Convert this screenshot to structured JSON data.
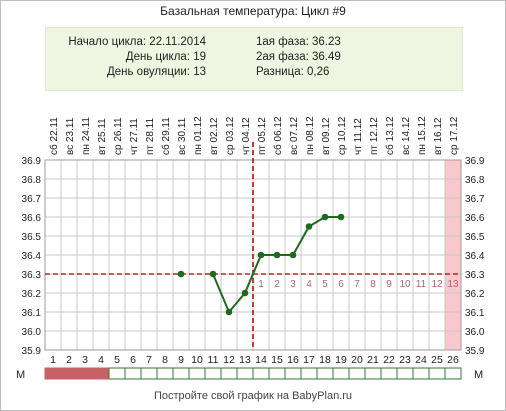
{
  "header": {
    "title": "Базальная температура: Цикл #9"
  },
  "info": {
    "cycle_start_label": "Начало цикла:",
    "cycle_start_value": "22.11.2014",
    "cycle_day_label": "День цикла:",
    "cycle_day_value": "19",
    "ovulation_day_label": "День овуляции:",
    "ovulation_day_value": "13",
    "phase1_label": "1ая фаза:",
    "phase1_value": "36.23",
    "phase2_label": "2ая фаза:",
    "phase2_value": "36.49",
    "difference_label": "Разница:",
    "difference_value": "0,26"
  },
  "footer": {
    "text": "Постройте свой график на BabyPlan.ru"
  },
  "colors": {
    "line": "#1e6b1e",
    "point": "#1e6b1e",
    "grid": "#c8c8c8",
    "coverline": "#a00000",
    "ovulation_marker": "#cc0000",
    "luteal_numbers": "#c06070",
    "highlight_column": "#f8c8cc",
    "menstruation": "#c86068",
    "strip_border": "#2e7d32"
  },
  "chart_data": {
    "type": "line",
    "title": "Базальная температура: Цикл #9",
    "days": [
      1,
      2,
      3,
      4,
      5,
      6,
      7,
      8,
      9,
      10,
      11,
      12,
      13,
      14,
      15,
      16,
      17,
      18,
      19,
      20,
      21,
      22,
      23,
      24,
      25,
      26
    ],
    "dates": [
      "22.11",
      "23.11",
      "24.11",
      "25.11",
      "26.11",
      "27.11",
      "28.11",
      "29.11",
      "30.11",
      "01.12",
      "02.12",
      "03.12",
      "04.12",
      "05.12",
      "06.12",
      "07.12",
      "08.12",
      "09.12",
      "10.12",
      "11.12",
      "12.12",
      "13.12",
      "14.12",
      "15.12",
      "16.12",
      "17.12"
    ],
    "weekdays": [
      "сб",
      "вс",
      "пн",
      "вт",
      "ср",
      "чт",
      "пт",
      "сб",
      "вс",
      "пн",
      "вт",
      "ср",
      "чт",
      "пт",
      "сб",
      "вс",
      "пн",
      "вт",
      "ср",
      "чт",
      "пт",
      "сб",
      "вс",
      "пн",
      "вт",
      "ср"
    ],
    "temperatures": [
      null,
      null,
      null,
      null,
      null,
      null,
      null,
      null,
      36.3,
      null,
      36.3,
      36.1,
      36.2,
      36.4,
      36.4,
      36.4,
      36.55,
      36.6,
      36.6,
      null,
      null,
      null,
      null,
      null,
      null,
      null
    ],
    "ylim": [
      35.9,
      36.9
    ],
    "yticks": [
      "36.9",
      "36.8",
      "36.7",
      "36.6",
      "36.5",
      "36.4",
      "36.3",
      "36.2",
      "36.1",
      "36.0",
      "35.9"
    ],
    "coverline": 36.3,
    "ovulation_day": 13,
    "luteal_days": [
      "1",
      "2",
      "3",
      "4",
      "5",
      "6",
      "7",
      "8",
      "9",
      "10",
      "11",
      "12",
      "13"
    ],
    "highlight_day": 26,
    "menstruation_days": 4,
    "strip_label_left": "М",
    "strip_label_right": "М"
  }
}
